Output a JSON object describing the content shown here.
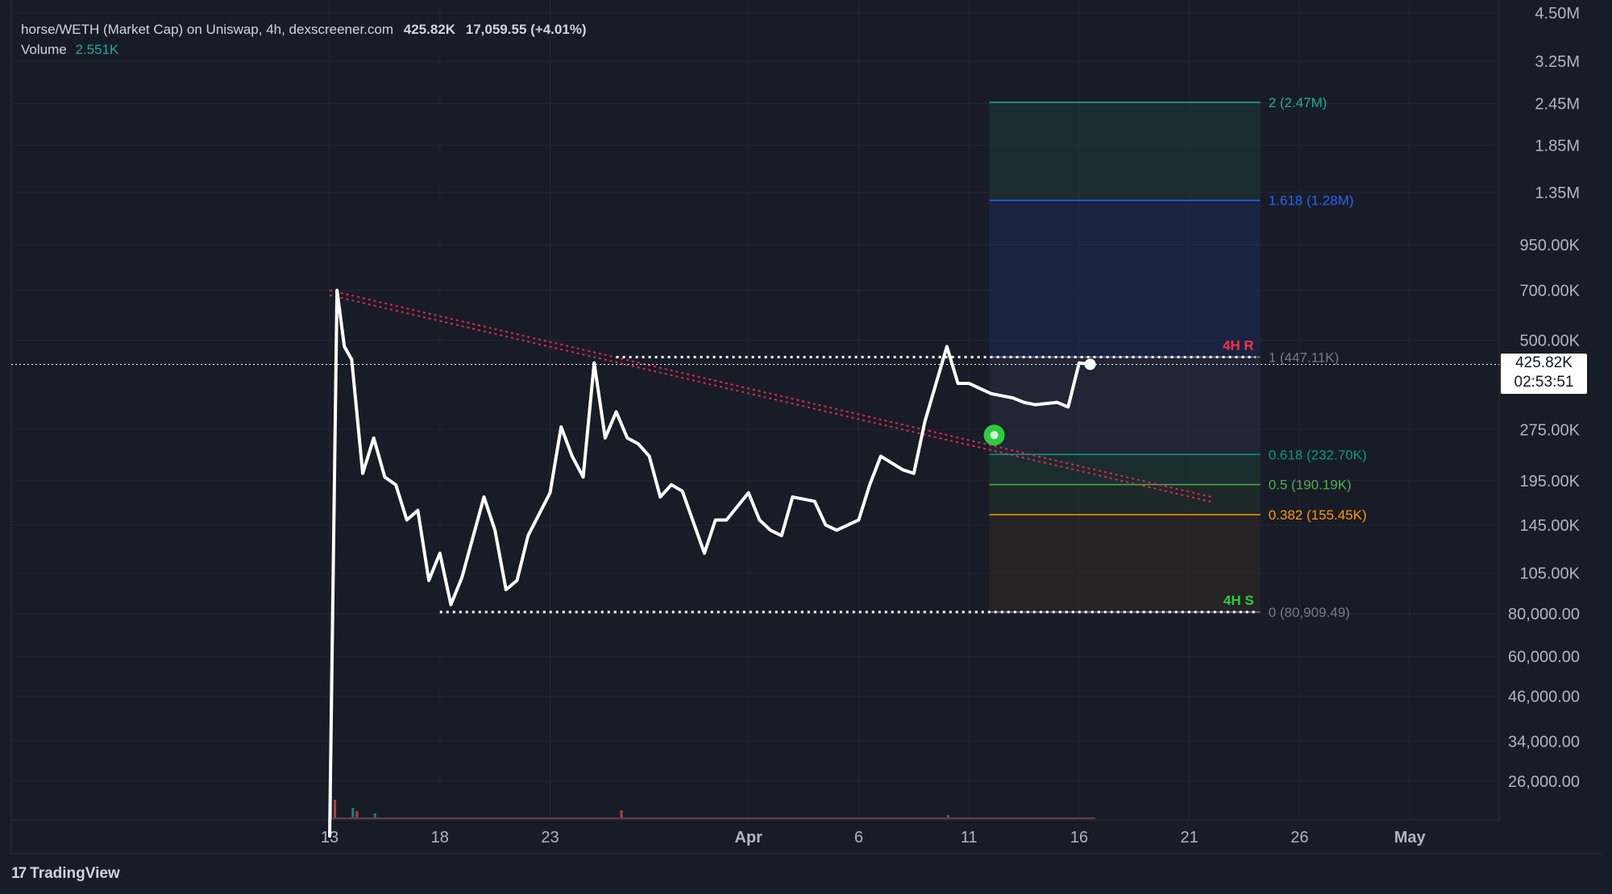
{
  "header": {
    "symbol": "horse/WETH (Market Cap) on Uniswap, 4h, dexscreener.com",
    "last_value": "425.82K",
    "change": "17,059.55 (+4.01%)",
    "volume_label": "Volume",
    "volume_value": "2.551K"
  },
  "price_tag": {
    "value": "425.82K",
    "countdown": "02:53:51"
  },
  "brand": {
    "logo": "17",
    "name": "TradingView"
  },
  "colors": {
    "background": "#181c27",
    "line": "#ffffff",
    "trendline": "#e02a4a",
    "fib_2": "#22ab94",
    "fib_1618": "#2962ff",
    "fib_1": "#787b86",
    "fib_0618": "#089981",
    "fib_05": "#4caf50",
    "fib_0382": "#ff9800",
    "fib_0": "#787b86",
    "resistance_label": "#f23645",
    "support_label": "#2ecc40",
    "entry_marker": "#2ecc40"
  },
  "chart_data": {
    "type": "line",
    "title": "horse/WETH (Market Cap) on Uniswap, 4h, dexscreener.com",
    "y_scale": "log",
    "y_tick_labels": [
      "4.50M",
      "3.25M",
      "2.45M",
      "1.85M",
      "1.35M",
      "950.00K",
      "700.00K",
      "500.00K",
      "275.00K",
      "195.00K",
      "145.00K",
      "105.00K",
      "80,000.00",
      "60,000.00",
      "46,000.00",
      "34,000.00",
      "26,000.00"
    ],
    "y_ticks": [
      4500000,
      3250000,
      2450000,
      1850000,
      1350000,
      950000,
      700000,
      500000,
      275000,
      195000,
      145000,
      105000,
      80000,
      60000,
      46000,
      34000,
      26000
    ],
    "x_tick_labels": [
      "13",
      "18",
      "23",
      "Apr",
      "6",
      "11",
      "16",
      "21",
      "26",
      "May"
    ],
    "x_ticks": [
      "2024-03-13",
      "2024-03-18",
      "2024-03-23",
      "2024-04-01",
      "2024-04-06",
      "2024-04-11",
      "2024-04-16",
      "2024-04-21",
      "2024-04-26",
      "2024-05-01"
    ],
    "series": [
      {
        "x": [
          "2024-03-13",
          "2024-03-13",
          "2024-03-13",
          "2024-03-14",
          "2024-03-14",
          "2024-03-15",
          "2024-03-15",
          "2024-03-16",
          "2024-03-16",
          "2024-03-17",
          "2024-03-17",
          "2024-03-18",
          "2024-03-18",
          "2024-03-19",
          "2024-03-20",
          "2024-03-20",
          "2024-03-21",
          "2024-03-21",
          "2024-03-22",
          "2024-03-23",
          "2024-03-23",
          "2024-03-24",
          "2024-03-24",
          "2024-03-25",
          "2024-03-25",
          "2024-03-26",
          "2024-03-26",
          "2024-03-27",
          "2024-03-27",
          "2024-03-28",
          "2024-03-28",
          "2024-03-29",
          "2024-03-30",
          "2024-03-30",
          "2024-03-31",
          "2024-04-01",
          "2024-04-01",
          "2024-04-02",
          "2024-04-02",
          "2024-04-03",
          "2024-04-04",
          "2024-04-04",
          "2024-04-05",
          "2024-04-06",
          "2024-04-06",
          "2024-04-07",
          "2024-04-08",
          "2024-04-08",
          "2024-04-09",
          "2024-04-10",
          "2024-04-10",
          "2024-04-11",
          "2024-04-12",
          "2024-04-12",
          "2024-04-13",
          "2024-04-13",
          "2024-04-14",
          "2024-04-15",
          "2024-04-15",
          "2024-04-16",
          "2024-04-16"
        ],
        "y": [
          18000,
          700000,
          480000,
          440000,
          205000,
          260000,
          200000,
          190000,
          150000,
          160000,
          100000,
          120000,
          85000,
          102000,
          175000,
          140000,
          94000,
          100000,
          135000,
          180000,
          280000,
          230000,
          200000,
          430000,
          260000,
          310000,
          260000,
          250000,
          230000,
          175000,
          190000,
          182000,
          120000,
          150000,
          150000,
          180000,
          150000,
          140000,
          135000,
          175000,
          170000,
          145000,
          140000,
          150000,
          190000,
          230000,
          210000,
          205000,
          290000,
          480000,
          375000,
          375000,
          350000,
          345000,
          340000,
          330000,
          325000,
          330000,
          320000,
          430000,
          426000
        ]
      }
    ],
    "fib_levels": [
      {
        "ratio": "2",
        "value": 2470000,
        "label": "2 (2.47M)"
      },
      {
        "ratio": "1.618",
        "value": 1280000,
        "label": "1.618 (1.28M)"
      },
      {
        "ratio": "1",
        "value": 447110,
        "label": "1 (447.11K)"
      },
      {
        "ratio": "0.618",
        "value": 232700,
        "label": "0.618 (232.70K)"
      },
      {
        "ratio": "0.5",
        "value": 190190,
        "label": "0.5 (190.19K)"
      },
      {
        "ratio": "0.382",
        "value": 155450,
        "label": "0.382 (155.45K)"
      },
      {
        "ratio": "0",
        "value": 80909.49,
        "label": "0 (80,909.49)"
      }
    ],
    "annotations": [
      {
        "text": "4H R",
        "kind": "resistance",
        "value": 447110
      },
      {
        "text": "4H S",
        "kind": "support",
        "value": 80909.49
      }
    ],
    "trendline": {
      "from": [
        "2024-03-13",
        700000
      ],
      "to": [
        "2024-04-22",
        175000
      ]
    },
    "resistance_line": {
      "from": "2024-03-26",
      "to": "2024-04-24",
      "value": 447110
    },
    "support_line": {
      "from": "2024-03-18",
      "to": "2024-04-24",
      "value": 80909.49
    },
    "current_value": 425820,
    "entry_marker": {
      "x": "2024-04-12",
      "y": 265000
    }
  }
}
